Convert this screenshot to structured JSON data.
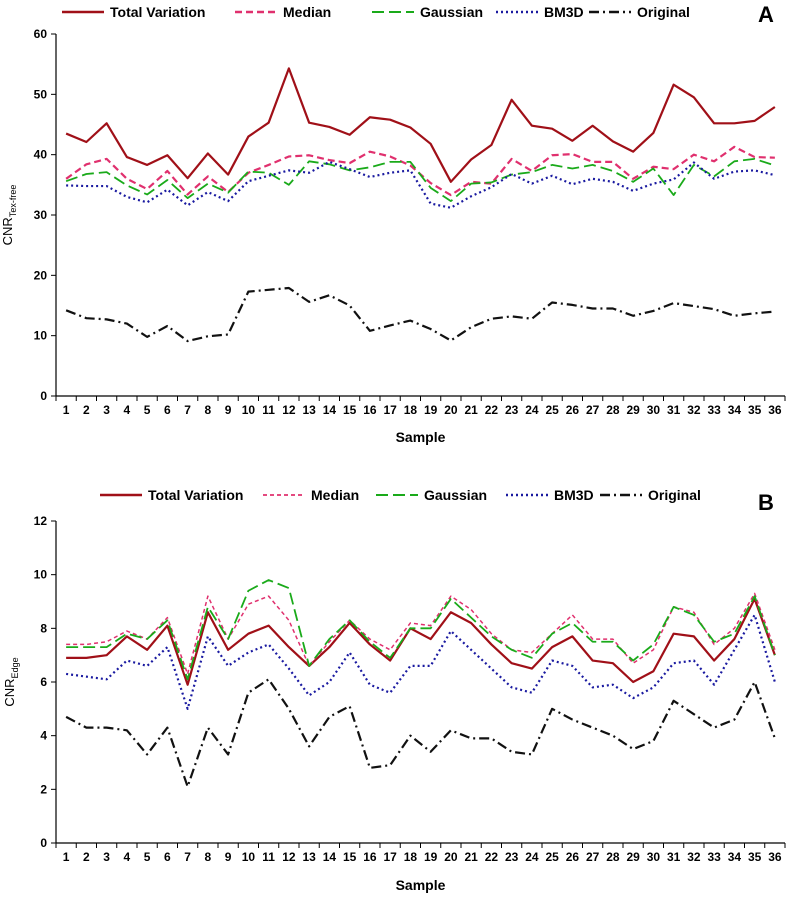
{
  "chart_data": [
    {
      "type": "line",
      "panel": "A",
      "xlabel": "Sample",
      "ylabel_main": "CNR",
      "ylabel_sub": "Tex-free",
      "ylim": [
        0,
        60
      ],
      "yticks": [
        0,
        10,
        20,
        30,
        40,
        50,
        60
      ],
      "legend_position": "top",
      "x": [
        1,
        2,
        3,
        4,
        5,
        6,
        7,
        8,
        9,
        10,
        11,
        12,
        13,
        14,
        15,
        16,
        17,
        18,
        19,
        20,
        21,
        22,
        23,
        24,
        25,
        26,
        27,
        28,
        29,
        30,
        31,
        32,
        33,
        34,
        35,
        36
      ],
      "series": [
        {
          "name": "Total Variation",
          "color": "#a01018",
          "dash": "solid",
          "width": 2.2,
          "values": [
            43.5,
            42.1,
            45.2,
            39.6,
            38.3,
            39.9,
            36.1,
            40.2,
            36.7,
            43.0,
            45.3,
            54.3,
            45.3,
            44.6,
            43.3,
            46.2,
            45.8,
            44.5,
            41.8,
            35.5,
            39.2,
            41.6,
            49.1,
            44.8,
            44.3,
            42.3,
            44.8,
            42.2,
            40.5,
            43.6,
            51.6,
            49.5,
            45.2,
            45.2,
            45.6,
            47.9
          ]
        },
        {
          "name": "Median",
          "color": "#e0306e",
          "dash": "7,4",
          "width": 2.2,
          "values": [
            36.0,
            38.4,
            39.3,
            36.0,
            34.3,
            37.3,
            33.4,
            36.4,
            33.8,
            37.0,
            38.3,
            39.7,
            39.9,
            39.1,
            38.6,
            40.5,
            39.7,
            38.2,
            35.3,
            33.3,
            35.5,
            35.2,
            39.3,
            37.3,
            39.9,
            40.1,
            38.8,
            38.8,
            36.0,
            38.0,
            37.6,
            40.0,
            38.9,
            41.3,
            39.6,
            39.5
          ]
        },
        {
          "name": "Gaussian",
          "color": "#1aaa1a",
          "dash": "12,5",
          "width": 1.8,
          "values": [
            35.6,
            36.8,
            37.1,
            34.9,
            33.4,
            35.8,
            32.8,
            35.2,
            33.7,
            37.2,
            37.0,
            35.0,
            38.9,
            38.4,
            37.4,
            37.9,
            38.8,
            38.8,
            34.5,
            32.3,
            35.2,
            35.4,
            36.7,
            37.1,
            38.3,
            37.7,
            38.3,
            37.3,
            35.5,
            37.7,
            33.3,
            38.3,
            36.4,
            38.9,
            39.3,
            38.2
          ]
        },
        {
          "name": "BM3D",
          "color": "#1a1aa0",
          "dash": "2,3",
          "width": 2.2,
          "values": [
            34.9,
            34.8,
            34.8,
            33.0,
            32.1,
            34.2,
            31.6,
            33.8,
            32.3,
            35.6,
            36.5,
            37.4,
            37.0,
            38.8,
            37.6,
            36.3,
            37.0,
            37.4,
            31.9,
            31.2,
            33.1,
            34.6,
            36.8,
            35.2,
            36.5,
            35.1,
            36.0,
            35.5,
            34.0,
            35.2,
            35.9,
            38.7,
            36.0,
            37.2,
            37.4,
            36.6
          ]
        },
        {
          "name": "Original",
          "color": "#111111",
          "dash": "10,4,2,4",
          "width": 2.2,
          "values": [
            14.2,
            12.9,
            12.7,
            12.0,
            9.8,
            11.6,
            9.1,
            9.9,
            10.2,
            17.3,
            17.6,
            17.9,
            15.6,
            16.7,
            15.0,
            10.8,
            11.7,
            12.5,
            11.1,
            9.2,
            11.4,
            12.8,
            13.2,
            12.8,
            15.5,
            15.1,
            14.5,
            14.5,
            13.3,
            14.1,
            15.4,
            14.9,
            14.4,
            13.3,
            13.7,
            14.0
          ]
        }
      ]
    },
    {
      "type": "line",
      "panel": "B",
      "xlabel": "Sample",
      "ylabel_main": "CNR",
      "ylabel_sub": "Edge",
      "ylim": [
        0,
        12
      ],
      "yticks": [
        0,
        2,
        4,
        6,
        8,
        10,
        12
      ],
      "legend_position": "top",
      "x": [
        1,
        2,
        3,
        4,
        5,
        6,
        7,
        8,
        9,
        10,
        11,
        12,
        13,
        14,
        15,
        16,
        17,
        18,
        19,
        20,
        21,
        22,
        23,
        24,
        25,
        26,
        27,
        28,
        29,
        30,
        31,
        32,
        33,
        34,
        35,
        36
      ],
      "series": [
        {
          "name": "Total Variation",
          "color": "#a01018",
          "dash": "solid",
          "width": 2.2,
          "values": [
            6.9,
            6.9,
            7.0,
            7.7,
            7.2,
            8.1,
            5.9,
            8.6,
            7.2,
            7.8,
            8.1,
            7.3,
            6.6,
            7.3,
            8.2,
            7.4,
            6.8,
            8.0,
            7.6,
            8.6,
            8.2,
            7.4,
            6.7,
            6.5,
            7.3,
            7.7,
            6.8,
            6.7,
            6.0,
            6.4,
            7.8,
            7.7,
            6.8,
            7.6,
            9.1,
            7.0
          ]
        },
        {
          "name": "Median",
          "color": "#e0306e",
          "dash": "4,3",
          "width": 1.5,
          "values": [
            7.4,
            7.4,
            7.5,
            7.9,
            7.6,
            8.4,
            6.3,
            9.2,
            7.6,
            8.9,
            9.2,
            8.3,
            6.6,
            7.5,
            8.3,
            7.6,
            7.2,
            8.2,
            8.1,
            9.2,
            8.7,
            7.8,
            7.2,
            7.1,
            7.8,
            8.5,
            7.6,
            7.6,
            6.7,
            7.2,
            8.8,
            8.6,
            7.4,
            8.0,
            9.3,
            7.2
          ]
        },
        {
          "name": "Gaussian",
          "color": "#1aaa1a",
          "dash": "12,5",
          "width": 1.8,
          "values": [
            7.3,
            7.3,
            7.3,
            7.8,
            7.6,
            8.3,
            6.1,
            8.8,
            7.6,
            9.4,
            9.8,
            9.5,
            6.6,
            7.6,
            8.3,
            7.5,
            6.9,
            8.0,
            8.0,
            9.1,
            8.4,
            7.7,
            7.2,
            6.9,
            7.8,
            8.2,
            7.5,
            7.5,
            6.8,
            7.4,
            8.8,
            8.5,
            7.5,
            7.8,
            9.2,
            7.0
          ]
        },
        {
          "name": "BM3D",
          "color": "#1a1aa0",
          "dash": "2,3",
          "width": 2.2,
          "values": [
            6.3,
            6.2,
            6.1,
            6.8,
            6.6,
            7.3,
            5.0,
            7.7,
            6.6,
            7.1,
            7.4,
            6.5,
            5.5,
            6.0,
            7.1,
            5.9,
            5.6,
            6.6,
            6.6,
            7.9,
            7.2,
            6.5,
            5.8,
            5.6,
            6.8,
            6.6,
            5.8,
            5.9,
            5.4,
            5.8,
            6.7,
            6.8,
            5.9,
            7.2,
            8.5,
            6.0
          ]
        },
        {
          "name": "Original",
          "color": "#111111",
          "dash": "10,4,2,4",
          "width": 2.2,
          "values": [
            4.7,
            4.3,
            4.3,
            4.2,
            3.3,
            4.3,
            2.1,
            4.3,
            3.3,
            5.6,
            6.1,
            5.0,
            3.6,
            4.7,
            5.1,
            2.8,
            2.9,
            4.0,
            3.4,
            4.2,
            3.9,
            3.9,
            3.4,
            3.3,
            5.0,
            4.6,
            4.3,
            4.0,
            3.5,
            3.8,
            5.3,
            4.8,
            4.3,
            4.6,
            6.0,
            3.9
          ]
        }
      ]
    }
  ],
  "panel_letters": [
    "A",
    "B"
  ]
}
